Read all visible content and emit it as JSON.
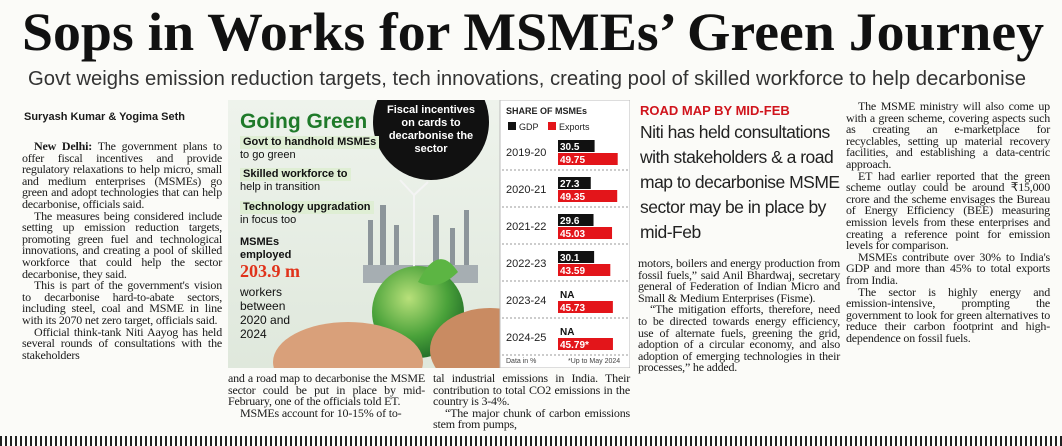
{
  "headline": "Sops in Works for MSMEs’ Green Journey",
  "subheadline": "Govt weighs emission reduction targets, tech innovations, creating pool of skilled workforce to help decarbonise",
  "byline": "Suryash Kumar & Yogima Seth",
  "article": {
    "dateline": "New Delhi:",
    "col1": [
      "The government plans to offer fiscal incentives and provide regulatory relaxations to help micro, small and medium enterprises (MSMEs) go green and adopt technologies that can help decarbonise, officials said.",
      "The measures being considered include setting up emission reduction targets, promoting green fuel and technological innovations, and creating a pool of skilled workforce that could help the sector decarbonise, they said.",
      "This is part of the government's vision to decarbonise hard-to-abate sectors, including steel, coal and MSME in line with its 2070 net zero target, officials said.",
      "Official think-tank Niti Aayog has held several rounds of consultations with the stakeholders"
    ],
    "col2": [
      "and a road map to decarbonise the MSME sector could be put in place by mid-February, one of the officials told ET.",
      "MSMEs account for 10-15% of to-"
    ],
    "col3": [
      "tal industrial emissions in India. Their contribution to total CO2 emissions in the country is 3-4%.",
      "“The major chunk of carbon emissions stem from pumps,"
    ],
    "col4": [
      "motors, boilers and energy production from fossil fuels,” said Anil Bhardwaj, secretary general of Federation of Indian Micro and Small & Medium Enterprises (Fisme).",
      "“The mitigation efforts, therefore, need to be directed towards energy efficiency, use of alternate fuels, greening the grid, adoption of a circular economy, and also adoption of emerging technologies in their processes,” he added."
    ],
    "col5": [
      "The MSME ministry will also come up with a green scheme, covering aspects such as creating an e-marketplace for recyclables, setting up material recovery facilities, and establishing a data-centric approach.",
      "ET had earlier reported that the green scheme outlay could be around ₹15,000 crore and the scheme envisages the Bureau of Energy Efficiency (BEE) measuring emission levels from these enterprises and creating a reference point for emission levels for comparison.",
      "MSMEs contribute over 30% to India's GDP and more than 45% to total exports from India.",
      "The sector is highly energy and emission-intensive, prompting the government to look for green alternatives to reduce their carbon footprint and high-dependence on fossil fuels."
    ]
  },
  "sidebar": {
    "kicker": "ROAD MAP BY MID-FEB",
    "quote": "Niti has held consultations with stakeholders & a road map to decarbonise MSME sector may be in place by mid-Feb"
  },
  "infographic": {
    "title": "Going Green",
    "callout": "Fiscal incentives on cards to decarbonise the sector",
    "items": [
      {
        "head": "Govt to handhold MSMEs",
        "text": "to go green"
      },
      {
        "head": "Skilled workforce to",
        "text": "help in transition"
      },
      {
        "head": "Technology upgradation",
        "text": "in focus too"
      }
    ],
    "employed_label": "MSMEs employed",
    "employed_value": "203.9 m",
    "employed_detail": "workers between 2020 and 2024",
    "share_chart": {
      "type": "bar",
      "title": "SHARE OF MSMEs",
      "categories": [
        "2019-20",
        "2020-21",
        "2021-22",
        "2022-23",
        "2023-24",
        "2024-25"
      ],
      "series": [
        {
          "name": "GDP",
          "color": "#111111",
          "values": [
            30.5,
            27.3,
            29.6,
            30.1,
            null,
            null
          ],
          "value_labels": [
            "30.5",
            "27.3",
            "29.6",
            "30.1",
            "NA",
            "NA"
          ]
        },
        {
          "name": "Exports",
          "color": "#e3151a",
          "values": [
            49.75,
            49.35,
            45.03,
            43.59,
            45.73,
            45.79
          ],
          "value_labels": [
            "49.75",
            "49.35",
            "45.03",
            "43.59",
            "45.73",
            "45.79*"
          ]
        }
      ],
      "note": "Data in %",
      "footnote": "*Up to May 2024"
    }
  }
}
